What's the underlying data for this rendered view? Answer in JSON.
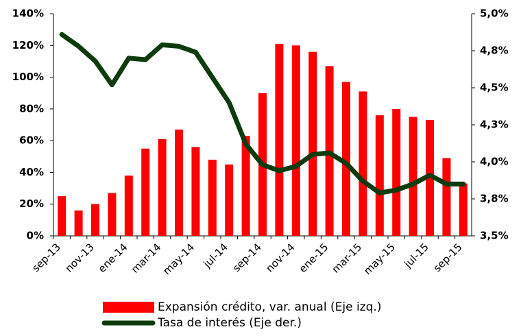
{
  "chart_data": {
    "type": "bar-line",
    "categories": [
      "sep-13",
      null,
      "nov-13",
      null,
      "ene-14",
      null,
      "mar-14",
      null,
      "may-14",
      null,
      "jul-14",
      null,
      "sep-14",
      null,
      "nov-14",
      null,
      "ene-15",
      null,
      "mar-15",
      null,
      "may-15",
      null,
      "jul-15",
      null,
      "sep-15"
    ],
    "series": [
      {
        "name": "Expansión crédito, var. anual (Eje izq.)",
        "type": "bar",
        "color": "#ff0000",
        "values": [
          25,
          16,
          20,
          27,
          38,
          55,
          61,
          67,
          56,
          48,
          45,
          63,
          90,
          121,
          120,
          116,
          107,
          97,
          91,
          76,
          80,
          75,
          73,
          49,
          33
        ]
      },
      {
        "name": "Tasa de interés (Eje der.)",
        "type": "line",
        "axis": "y2",
        "color": "#0d3b0d",
        "values": [
          4.86,
          4.78,
          4.68,
          4.52,
          4.7,
          4.69,
          4.79,
          4.78,
          4.74,
          4.57,
          4.4,
          4.12,
          3.98,
          3.94,
          3.97,
          4.05,
          4.06,
          3.99,
          3.87,
          3.79,
          3.81,
          3.85,
          3.91,
          3.85,
          3.85
        ]
      }
    ],
    "ylim": [
      0,
      140
    ],
    "yticks": [
      {
        "value": 0,
        "label": "0%"
      },
      {
        "value": 20,
        "label": "20%"
      },
      {
        "value": 40,
        "label": "40%"
      },
      {
        "value": 60,
        "label": "60%"
      },
      {
        "value": 80,
        "label": "80%"
      },
      {
        "value": 100,
        "label": "100%"
      },
      {
        "value": 120,
        "label": "120%"
      },
      {
        "value": 140,
        "label": "140%"
      }
    ],
    "y2lim": [
      3.5,
      5.0
    ],
    "y2ticks": [
      {
        "value": 3.5,
        "label": "3,5%"
      },
      {
        "value": 3.75,
        "label": "3,8%"
      },
      {
        "value": 4.0,
        "label": "4,0%"
      },
      {
        "value": 4.25,
        "label": "4,3%"
      },
      {
        "value": 4.5,
        "label": "4,5%"
      },
      {
        "value": 4.75,
        "label": "4,8%"
      },
      {
        "value": 5.0,
        "label": "5,0%"
      }
    ]
  }
}
